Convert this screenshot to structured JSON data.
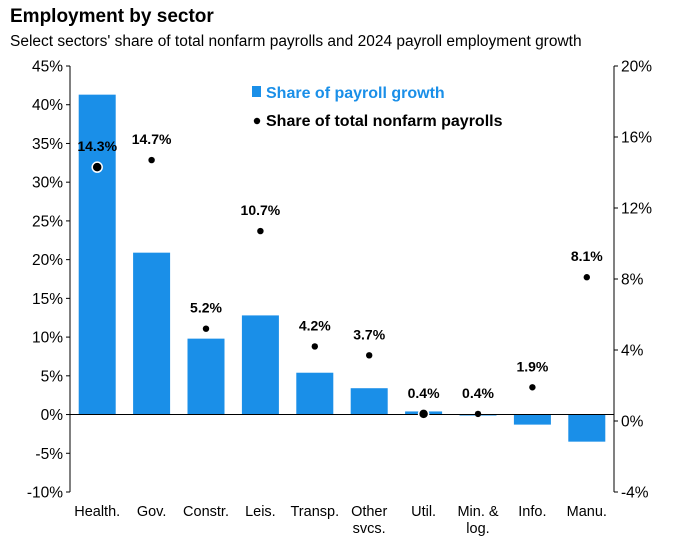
{
  "title": "Employment by sector",
  "subtitle": "Select sectors' share of total nonfarm payrolls and 2024 payroll employment growth",
  "colors": {
    "bar": "#1a8fe8",
    "dot": "#000000",
    "axis": "#000000"
  },
  "chart_data": {
    "type": "bar",
    "categories": [
      [
        "Health."
      ],
      [
        "Gov."
      ],
      [
        "Constr."
      ],
      [
        "Leis."
      ],
      [
        "Transp."
      ],
      [
        "Other",
        "svcs."
      ],
      [
        "Util."
      ],
      [
        "Min. &",
        "log."
      ],
      [
        "Info."
      ],
      [
        "Manu."
      ]
    ],
    "series": [
      {
        "name": "Share of payroll growth",
        "type": "bar",
        "axis": "left",
        "values": [
          41.3,
          20.9,
          9.8,
          12.8,
          5.4,
          3.4,
          0.4,
          -0.1,
          -1.3,
          -3.5
        ]
      },
      {
        "name": "Share of total nonfarm payrolls",
        "type": "scatter",
        "axis": "right",
        "values": [
          14.3,
          14.7,
          5.2,
          10.7,
          4.2,
          3.7,
          0.4,
          0.4,
          1.9,
          8.1
        ],
        "labels": [
          "14.3%",
          "14.7%",
          "5.2%",
          "10.7%",
          "4.2%",
          "3.7%",
          "0.4%",
          "0.4%",
          "1.9%",
          "8.1%"
        ]
      }
    ],
    "y_left": {
      "min": -10,
      "max": 45,
      "step": 5,
      "tick_labels": [
        "-10%",
        "-5%",
        "0%",
        "5%",
        "10%",
        "15%",
        "20%",
        "25%",
        "30%",
        "35%",
        "40%",
        "45%"
      ]
    },
    "y_right": {
      "min": -4,
      "max": 20,
      "step": 4,
      "tick_labels": [
        "-4%",
        "0%",
        "4%",
        "8%",
        "12%",
        "16%",
        "20%"
      ]
    },
    "legend_position": "top-center",
    "grid": false
  }
}
